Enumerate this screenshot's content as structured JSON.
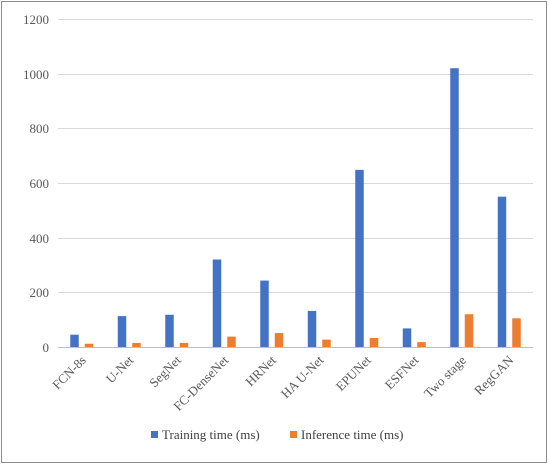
{
  "chart_data": {
    "type": "bar",
    "title": "",
    "xlabel": "",
    "ylabel": "",
    "ylim": [
      0,
      1200
    ],
    "yticks": [
      0,
      200,
      400,
      600,
      800,
      1000,
      1200
    ],
    "grid": true,
    "legend_position": "bottom",
    "categories": [
      "FCN-8s",
      "U-Net",
      "SegNet",
      "FC-DenseNet",
      "HRNet",
      "HA U-Net",
      "EPUNet",
      "ESFNet",
      "Two stage",
      "RegGAN"
    ],
    "series": [
      {
        "name": "Training time (ms)",
        "color": "#4472C4",
        "values": [
          45,
          113,
          118,
          320,
          243,
          132,
          648,
          68,
          1020,
          550
        ]
      },
      {
        "name": "Inference time (ms)",
        "color": "#ED7D31",
        "values": [
          12,
          15,
          15,
          38,
          51,
          27,
          33,
          18,
          120,
          105
        ]
      }
    ]
  }
}
